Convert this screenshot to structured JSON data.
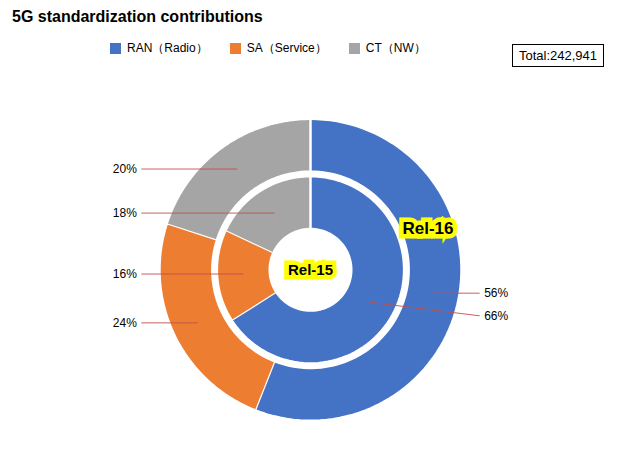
{
  "chart_data": {
    "type": "pie",
    "title": "5G standardization contributions",
    "categories": [
      "RAN（Radio）",
      "SA（Service）",
      "CT（NW）"
    ],
    "colors": [
      "#4472C4",
      "#ED7D31",
      "#A5A5A5"
    ],
    "series": [
      {
        "name": "Rel-16",
        "values": [
          56,
          24,
          20
        ],
        "value_labels": [
          "56%",
          "24%",
          "20%"
        ]
      },
      {
        "name": "Rel-15",
        "values": [
          66,
          16,
          18
        ],
        "value_labels": [
          "66%",
          "16%",
          "18%"
        ]
      }
    ],
    "annotations": [
      "Total:242,941"
    ],
    "legend": "top",
    "data_labels": true
  }
}
